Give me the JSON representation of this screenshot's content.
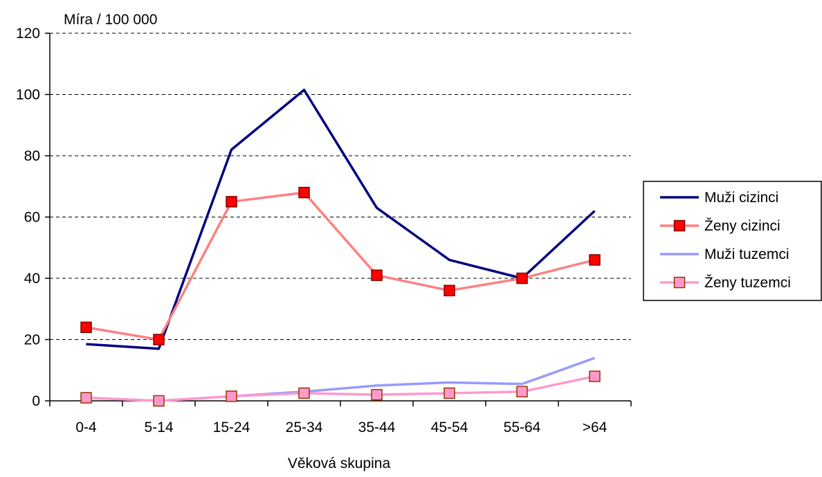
{
  "chart_data": {
    "type": "line",
    "ylabel": "Míra / 100 000",
    "xlabel": "Věková skupina",
    "categories": [
      "0-4",
      "5-14",
      "15-24",
      "25-34",
      "35-44",
      "45-54",
      "55-64",
      ">64"
    ],
    "ylim": [
      0,
      120
    ],
    "yticks": [
      0,
      20,
      40,
      60,
      80,
      100,
      120
    ],
    "grid": "horizontal dashed",
    "legend_position": "right",
    "series": [
      {
        "name": "Muži cizinci",
        "values": [
          18.5,
          17,
          82,
          101.5,
          63,
          46,
          40,
          62
        ],
        "color": "#000080",
        "marker": "none"
      },
      {
        "name": "Ženy cizinci",
        "values": [
          24,
          20,
          65,
          68,
          41,
          36,
          40,
          46
        ],
        "color": "#ff8080",
        "marker": "square",
        "marker_fill": "#ff0000",
        "marker_stroke": "#800000"
      },
      {
        "name": "Muži tuzemci",
        "values": [
          1,
          0,
          1.5,
          3,
          5,
          6,
          5.5,
          14
        ],
        "color": "#9999ff",
        "marker": "none"
      },
      {
        "name": "Ženy tuzemci",
        "values": [
          1,
          0,
          1.5,
          2.5,
          2,
          2.5,
          3,
          8
        ],
        "color": "#ff99cc",
        "marker": "square",
        "marker_fill": "#ff99cc",
        "marker_stroke": "#993300"
      }
    ]
  }
}
